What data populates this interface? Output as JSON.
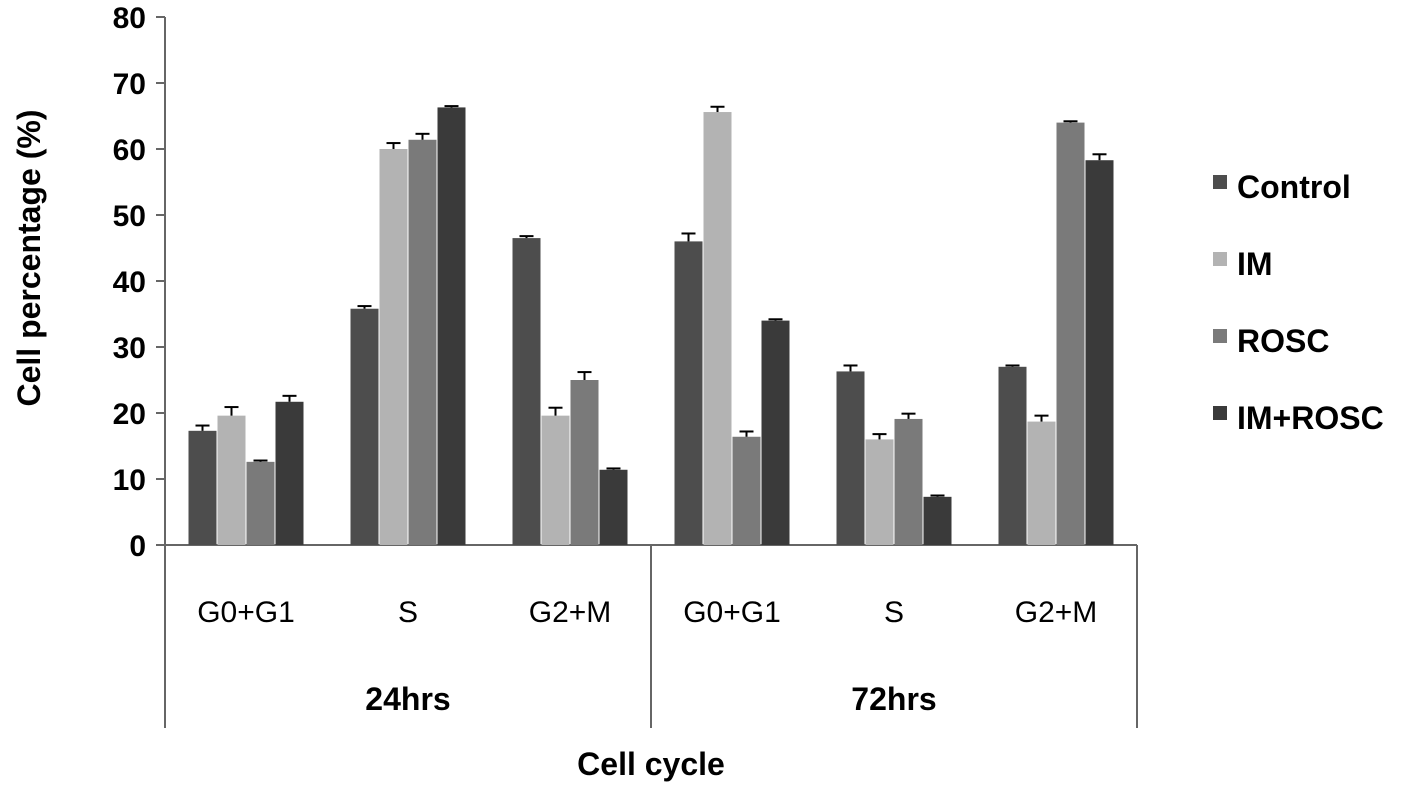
{
  "chart_data": {
    "type": "bar",
    "title": "",
    "xlabel": "Cell cycle",
    "ylabel": "Cell percentage  (%)",
    "ylim": [
      0,
      80
    ],
    "yticks": [
      "0",
      "10",
      "20",
      "30",
      "40",
      "50",
      "60",
      "70",
      "80"
    ],
    "groups": [
      "24hrs",
      "72hrs"
    ],
    "categories": [
      "G0+G1",
      "S",
      "G2+M",
      "G0+G1",
      "S",
      "G2+M"
    ],
    "legend_position": "right",
    "grid": false,
    "series": [
      {
        "name": "Control",
        "color": "#4d4d4d",
        "values": [
          17.3,
          35.8,
          46.5,
          46.0,
          26.3,
          27.0
        ],
        "errors": [
          0.8,
          0.4,
          0.3,
          1.2,
          0.9,
          0.2
        ]
      },
      {
        "name": "IM",
        "color": "#b3b3b3",
        "values": [
          19.6,
          60.0,
          19.6,
          65.6,
          16.0,
          18.7
        ],
        "errors": [
          1.3,
          0.9,
          1.2,
          0.8,
          0.8,
          0.9
        ]
      },
      {
        "name": "ROSC",
        "color": "#7a7a7a",
        "values": [
          12.6,
          61.4,
          25.0,
          16.4,
          19.1,
          64.0
        ],
        "errors": [
          0.2,
          0.9,
          1.2,
          0.8,
          0.8,
          0.2
        ]
      },
      {
        "name": "IM+ROSC",
        "color": "#3a3a3a",
        "values": [
          21.7,
          66.3,
          11.4,
          34.0,
          7.3,
          58.3
        ],
        "errors": [
          0.9,
          0.2,
          0.2,
          0.2,
          0.2,
          0.9
        ]
      }
    ]
  }
}
